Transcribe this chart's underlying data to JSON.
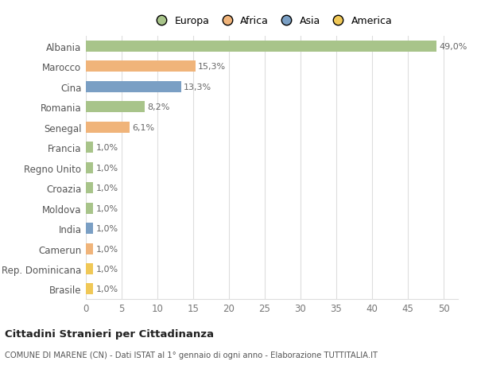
{
  "categories": [
    "Albania",
    "Marocco",
    "Cina",
    "Romania",
    "Senegal",
    "Francia",
    "Regno Unito",
    "Croazia",
    "Moldova",
    "India",
    "Camerun",
    "Rep. Dominicana",
    "Brasile"
  ],
  "values": [
    49.0,
    15.3,
    13.3,
    8.2,
    6.1,
    1.0,
    1.0,
    1.0,
    1.0,
    1.0,
    1.0,
    1.0,
    1.0
  ],
  "labels": [
    "49,0%",
    "15,3%",
    "13,3%",
    "8,2%",
    "6,1%",
    "1,0%",
    "1,0%",
    "1,0%",
    "1,0%",
    "1,0%",
    "1,0%",
    "1,0%",
    "1,0%"
  ],
  "colors": [
    "#a8c48a",
    "#f0b47a",
    "#7a9fc4",
    "#a8c48a",
    "#f0b47a",
    "#a8c48a",
    "#a8c48a",
    "#a8c48a",
    "#a8c48a",
    "#7a9fc4",
    "#f0b47a",
    "#f0c857",
    "#f0c857"
  ],
  "legend_labels": [
    "Europa",
    "Africa",
    "Asia",
    "America"
  ],
  "legend_colors": [
    "#a8c48a",
    "#f0b47a",
    "#7a9fc4",
    "#f0c857"
  ],
  "title": "Cittadini Stranieri per Cittadinanza",
  "subtitle": "COMUNE DI MARENE (CN) - Dati ISTAT al 1° gennaio di ogni anno - Elaborazione TUTTITALIA.IT",
  "xlim": [
    0,
    52
  ],
  "xticks": [
    0,
    5,
    10,
    15,
    20,
    25,
    30,
    35,
    40,
    45,
    50
  ],
  "background_color": "#ffffff",
  "grid_color": "#dddddd",
  "bar_height": 0.55
}
